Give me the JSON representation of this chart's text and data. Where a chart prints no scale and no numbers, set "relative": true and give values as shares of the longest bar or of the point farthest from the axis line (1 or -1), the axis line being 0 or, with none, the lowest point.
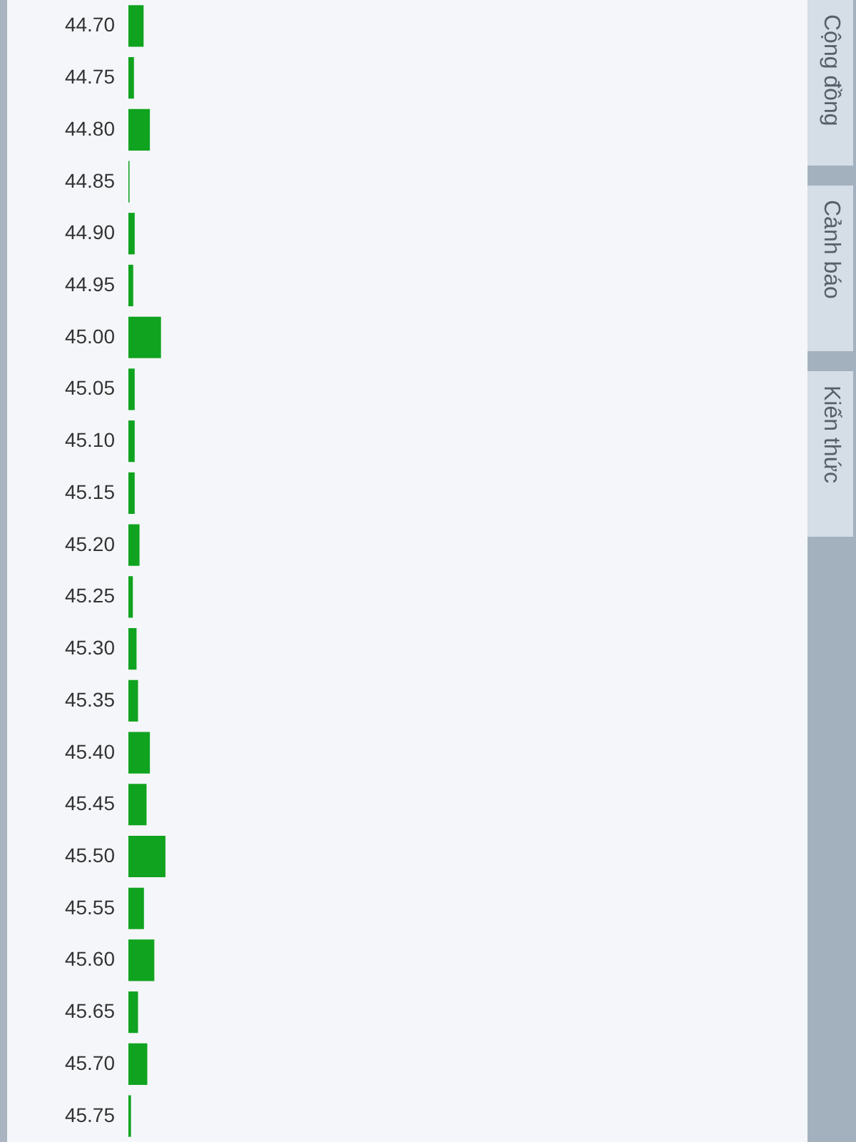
{
  "chart_data": {
    "type": "bar",
    "orientation": "horizontal",
    "relative": true,
    "categories": [
      "44.70",
      "44.75",
      "44.80",
      "44.85",
      "44.90",
      "44.95",
      "45.00",
      "45.05",
      "45.10",
      "45.15",
      "45.20",
      "45.25",
      "45.30",
      "45.35",
      "45.40",
      "45.45",
      "45.50",
      "45.55",
      "45.60",
      "45.65",
      "45.70",
      "45.75"
    ],
    "values": [
      0.41,
      0.15,
      0.58,
      0.03,
      0.17,
      0.13,
      0.88,
      0.17,
      0.17,
      0.17,
      0.3,
      0.12,
      0.22,
      0.26,
      0.58,
      0.49,
      1,
      0.42,
      0.7,
      0.26,
      0.51,
      0.07
    ],
    "color": "#10a31f",
    "annotations": [
      "Cộng đồng",
      "Cảnh báo",
      "Kiến thức"
    ]
  }
}
